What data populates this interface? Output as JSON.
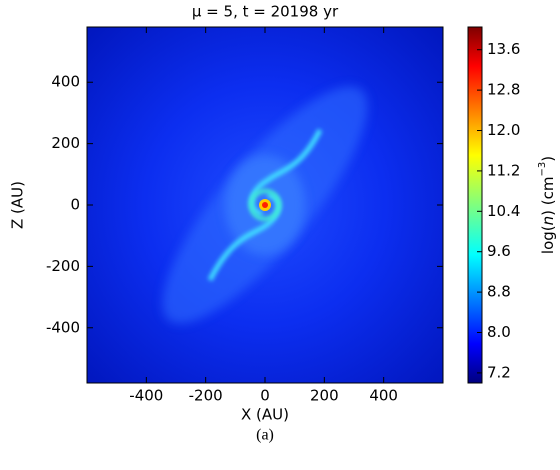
{
  "chart_data": {
    "type": "heatmap",
    "title": "μ = 5, t = 20198 yr",
    "x_label": "X (AU)",
    "y_label": "Z (AU)",
    "colorbar_label": [
      "log(",
      "n",
      ") (cm",
      "−3",
      ")"
    ],
    "xlim": [
      -600,
      600
    ],
    "ylim": [
      -580,
      580
    ],
    "xticks": [
      -400,
      -200,
      0,
      200,
      400
    ],
    "yticks": [
      -400,
      -200,
      0,
      200,
      400
    ],
    "clim": [
      7.0,
      14.05
    ],
    "cticks": [
      7.2,
      {
        "value": 8,
        "label": "8.0"
      },
      8.8,
      9.6,
      10.4,
      11.2,
      {
        "value": 12,
        "label": "12.0"
      },
      12.8,
      13.6
    ],
    "colormap": "jet",
    "caption": "(a)"
  }
}
